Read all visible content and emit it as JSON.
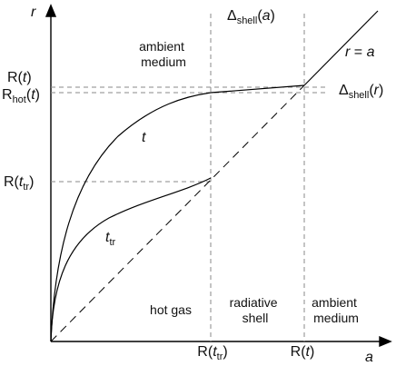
{
  "axes": {
    "y_label": "r",
    "x_label": "a"
  },
  "y_ticks": {
    "R_t": {
      "base": "R(",
      "arg": "t",
      "close": ")"
    },
    "R_hot_t": {
      "base": "R",
      "sub": "hot",
      "open": "(",
      "arg": "t",
      "close": ")"
    },
    "R_ttr": {
      "base": "R(",
      "arg": "t",
      "sub": "tr",
      "close": ")"
    }
  },
  "x_ticks": {
    "R_ttr": {
      "base": "R(",
      "arg": "t",
      "sub": "tr",
      "close": ")"
    },
    "R_t": {
      "base": "R(",
      "arg": "t",
      "close": ")"
    }
  },
  "labels": {
    "delta_shell_a": {
      "base": "Δ",
      "sub": "shell",
      "open": "(",
      "arg": "a",
      "close": ")"
    },
    "delta_shell_r": {
      "base": "Δ",
      "sub": "shell",
      "open": "(",
      "arg": "r",
      "close": ")"
    },
    "r_eq_a": {
      "lhs": "r",
      "eq": " = ",
      "rhs": "a"
    },
    "curve_t": "t",
    "curve_ttr": {
      "base": "t",
      "sub": "tr"
    }
  },
  "regions": {
    "ambient_top": [
      "ambient",
      "medium"
    ],
    "hot_gas": [
      "hot gas"
    ],
    "radiative_shell": [
      "radiative",
      "shell"
    ],
    "ambient_bottom": [
      "ambient",
      "medium"
    ]
  }
}
